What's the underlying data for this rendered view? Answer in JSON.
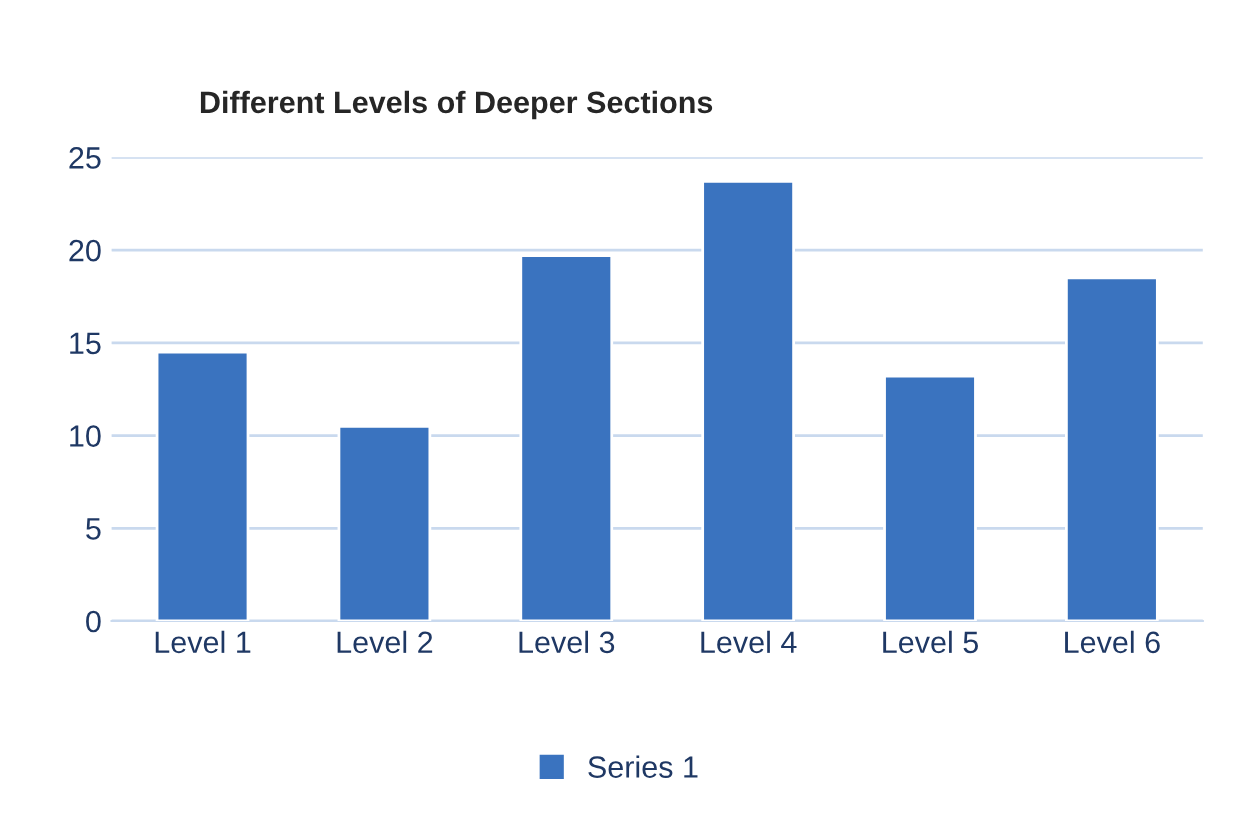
{
  "chart_data": {
    "type": "bar",
    "title": "Different Levels of Deeper Sections",
    "categories": [
      "Level 1",
      "Level 2",
      "Level 3",
      "Level 4",
      "Level 5",
      "Level 6"
    ],
    "series": [
      {
        "name": "Series 1",
        "color": "#3a73bf",
        "values": [
          14.5,
          10.5,
          19.7,
          23.7,
          13.2,
          18.5
        ]
      }
    ],
    "ylim": [
      0,
      25
    ],
    "yticks": [
      0,
      5,
      10,
      15,
      20,
      25
    ],
    "grid": "y",
    "legend": "bottom"
  }
}
